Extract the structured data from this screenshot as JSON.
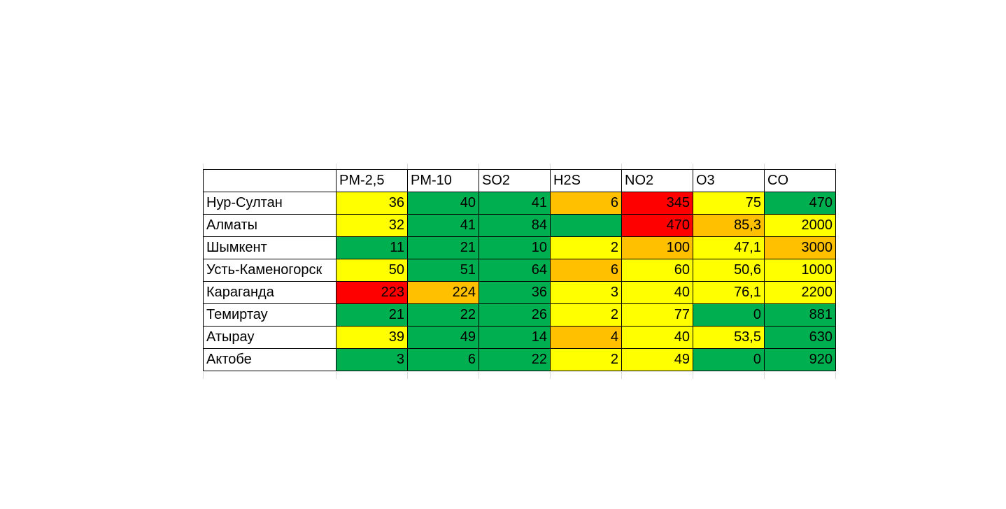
{
  "colors": {
    "green": "#00b050",
    "yellow": "#ffff00",
    "orange": "#ffc000",
    "red": "#ff0000",
    "white": "#ffffff"
  },
  "table": {
    "headers": [
      "",
      "PM-2,5",
      "PM-10",
      "SO2",
      "H2S",
      "NO2",
      "O3",
      "CO"
    ],
    "rows": [
      {
        "city": "Нур-Султан",
        "values": [
          "36",
          "40",
          "41",
          "6",
          "345",
          "75",
          "470"
        ],
        "colors": [
          "yellow",
          "green",
          "green",
          "orange",
          "red",
          "yellow",
          "green"
        ]
      },
      {
        "city": "Алматы",
        "values": [
          "32",
          "41",
          "84",
          "",
          "470",
          "85,3",
          "2000"
        ],
        "colors": [
          "yellow",
          "green",
          "green",
          "green",
          "red",
          "orange",
          "yellow"
        ]
      },
      {
        "city": "Шымкент",
        "values": [
          "11",
          "21",
          "10",
          "2",
          "100",
          "47,1",
          "3000"
        ],
        "colors": [
          "green",
          "green",
          "green",
          "yellow",
          "orange",
          "yellow",
          "orange"
        ]
      },
      {
        "city": "Усть-Каменогорск",
        "values": [
          "50",
          "51",
          "64",
          "6",
          "60",
          "50,6",
          "1000"
        ],
        "colors": [
          "yellow",
          "green",
          "green",
          "orange",
          "yellow",
          "yellow",
          "yellow"
        ]
      },
      {
        "city": "Караганда",
        "values": [
          "223",
          "224",
          "36",
          "3",
          "40",
          "76,1",
          "2200"
        ],
        "colors": [
          "red",
          "orange",
          "green",
          "yellow",
          "yellow",
          "yellow",
          "yellow"
        ]
      },
      {
        "city": "Темиртау",
        "values": [
          "21",
          "22",
          "26",
          "2",
          "77",
          "0",
          "881"
        ],
        "colors": [
          "green",
          "green",
          "green",
          "yellow",
          "yellow",
          "green",
          "green"
        ]
      },
      {
        "city": "Атырау",
        "values": [
          "39",
          "49",
          "14",
          "4",
          "40",
          "53,5",
          "630"
        ],
        "colors": [
          "yellow",
          "green",
          "green",
          "orange",
          "yellow",
          "yellow",
          "green"
        ]
      },
      {
        "city": "Актобе",
        "values": [
          "3",
          "6",
          "22",
          "2",
          "49",
          "0",
          "920"
        ],
        "colors": [
          "green",
          "green",
          "green",
          "yellow",
          "yellow",
          "green",
          "green"
        ]
      }
    ]
  }
}
